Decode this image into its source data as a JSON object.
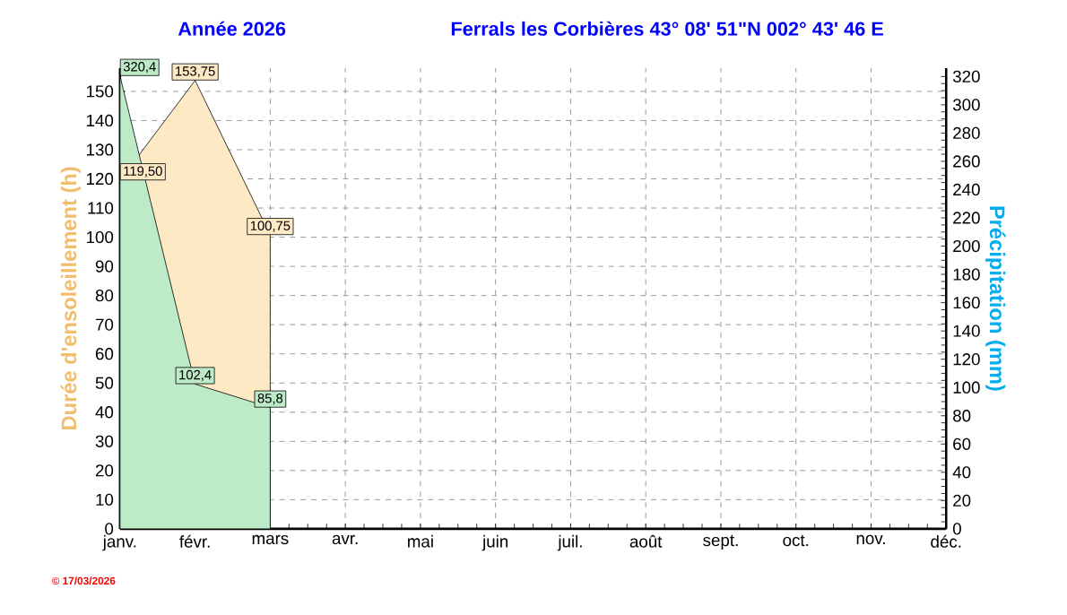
{
  "chart_data": {
    "type": "area",
    "title": "Année  2026",
    "subtitle": "Ferrals les Corbières 43° 08' 51\"N  002° 43' 46 E",
    "ylabel": "Durée d'ensoleillement  (h)",
    "y2label": "Précipitation  (mm)",
    "categories": [
      "janv.",
      "févr.",
      "mars",
      "avr.",
      "mai",
      "juin",
      "juil.",
      "août",
      "sept.",
      "oct.",
      "nov.",
      "déc."
    ],
    "series": [
      {
        "color": "#fde9c4",
        "values": [
          119.5,
          153.75,
          100.75,
          null,
          null,
          null,
          null,
          null,
          null,
          null,
          null,
          null
        ],
        "value_labels": [
          "119,50",
          "153,75",
          "100,75",
          null,
          null,
          null,
          null,
          null,
          null,
          null,
          null,
          null
        ]
      },
      {
        "color": "#bdebc8",
        "axis": "y2",
        "values": [
          320.4,
          102.4,
          85.8,
          null,
          null,
          null,
          null,
          null,
          null,
          null,
          null,
          null
        ],
        "value_labels": [
          "320,4",
          "102,4",
          "85,8",
          null,
          null,
          null,
          null,
          null,
          null,
          null,
          null,
          null
        ]
      }
    ],
    "ylim": [
      0,
      158
    ],
    "yticks": [
      0,
      10,
      20,
      30,
      40,
      50,
      60,
      70,
      80,
      90,
      100,
      110,
      120,
      130,
      140,
      150
    ],
    "y2lim": [
      0,
      326
    ],
    "y2ticks": [
      0,
      20,
      40,
      60,
      80,
      100,
      120,
      140,
      160,
      180,
      200,
      220,
      240,
      260,
      280,
      300,
      320
    ],
    "grid": true,
    "annotations": [
      "© 17/03/2026"
    ]
  }
}
